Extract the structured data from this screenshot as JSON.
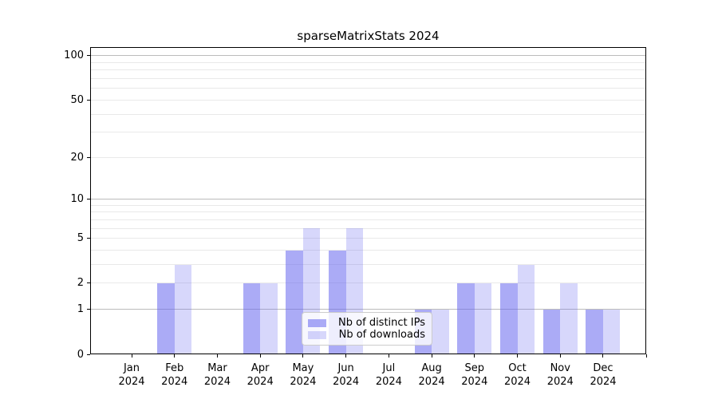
{
  "title": "sparseMatrixStats 2024",
  "legend": {
    "items": [
      {
        "label": "Nb of distinct IPs",
        "series_key": "ips"
      },
      {
        "label": "Nb of downloads",
        "series_key": "downloads"
      }
    ],
    "position": "lower center"
  },
  "colors": {
    "bar_base": "#6666ee",
    "ips_fill": "rgba(102,102,238,0.55)",
    "downloads_fill": "rgba(102,102,238,0.26)",
    "major_grid": "#bcbcbc",
    "minor_grid": "#e9e9e9",
    "axis": "#000000"
  },
  "chart_data": {
    "type": "bar",
    "title": "sparseMatrixStats 2024",
    "xlabel": "",
    "ylabel": "",
    "yscale": "log1p",
    "ylim": [
      0,
      114
    ],
    "grid": true,
    "legend_position": "lower center",
    "categories": [
      "Jan",
      "Feb",
      "Mar",
      "Apr",
      "May",
      "Jun",
      "Jul",
      "Aug",
      "Sep",
      "Oct",
      "Nov",
      "Dec"
    ],
    "year_label": "2024",
    "yticks": [
      0,
      1,
      2,
      5,
      10,
      20,
      50,
      100
    ],
    "minor_grid_values": [
      2,
      3,
      4,
      5,
      6,
      7,
      8,
      9,
      20,
      30,
      40,
      50,
      60,
      70,
      80,
      90
    ],
    "major_grid_values": [
      1,
      10,
      100
    ],
    "series": [
      {
        "name": "Nb of distinct IPs",
        "key": "ips",
        "values": [
          0,
          2,
          0,
          2,
          4,
          4,
          0,
          1,
          2,
          2,
          1,
          1
        ]
      },
      {
        "name": "Nb of downloads",
        "key": "downloads",
        "values": [
          0,
          3,
          0,
          2,
          6,
          6,
          0,
          1,
          2,
          3,
          2,
          1
        ]
      }
    ]
  }
}
